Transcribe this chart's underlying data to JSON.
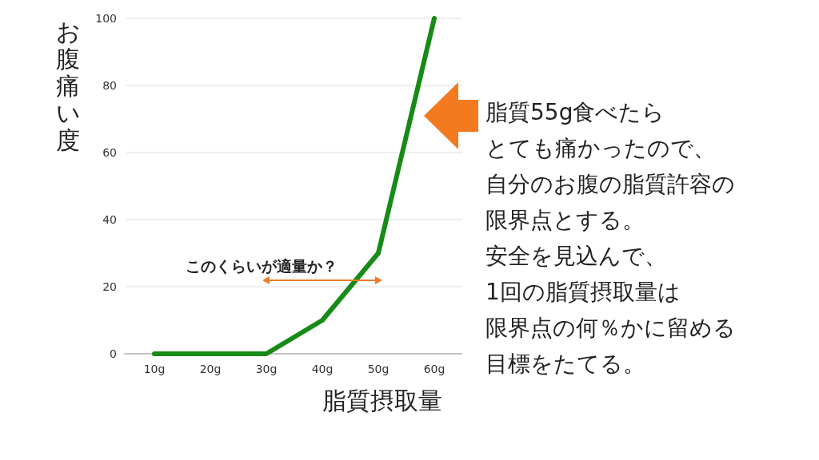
{
  "chart_data": {
    "type": "line",
    "xlabel": "脂質摂取量",
    "ylabel": "お腹痛い度",
    "categories": [
      "10g",
      "20g",
      "30g",
      "40g",
      "50g",
      "60g"
    ],
    "series": [
      {
        "color": "#168b16",
        "values": [
          0,
          0,
          0,
          10,
          30,
          100
        ]
      }
    ],
    "ylim": [
      0,
      100
    ],
    "yticks": [
      0,
      20,
      40,
      60,
      80,
      100
    ],
    "grid": "y",
    "marker": "none",
    "line_style": "solid",
    "annotations": [
      "このくらいが適量か？",
      "脂質55g食べたら",
      "とても痛かったので、",
      "自分のお腹の脂質許容の",
      "限界点とする。",
      "安全を見込んで、",
      "1回の脂質摂取量は",
      "限界点の何％かに留める",
      "目標をたてる。"
    ]
  }
}
